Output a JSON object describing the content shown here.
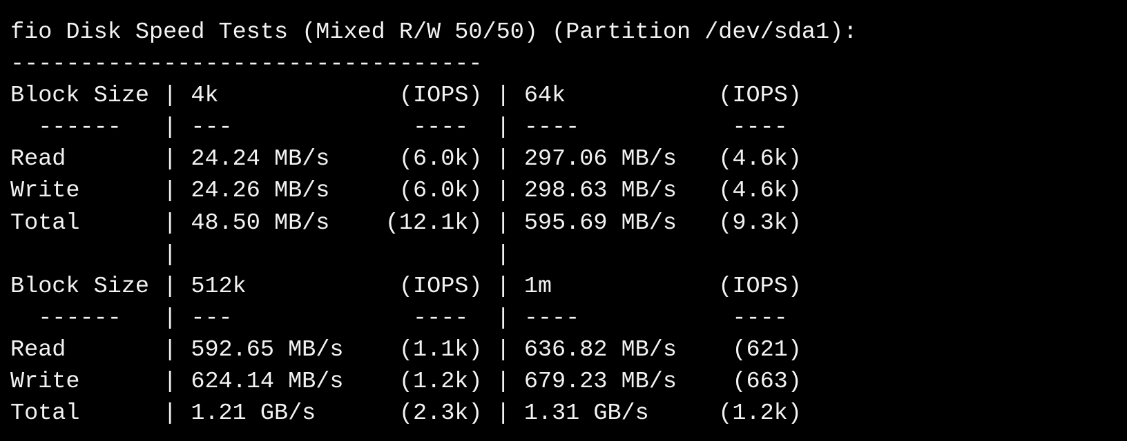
{
  "terminal": {
    "lines": [
      "fio Disk Speed Tests (Mixed R/W 50/50) (Partition /dev/sda1):",
      "----------------------------------",
      "Block Size | 4k             (IOPS) | 64k           (IOPS)",
      "  ------   | ---             ----  | ----           ----",
      "Read       | 24.24 MB/s     (6.0k) | 297.06 MB/s   (4.6k)",
      "Write      | 24.26 MB/s     (6.0k) | 298.63 MB/s   (4.6k)",
      "Total      | 48.50 MB/s    (12.1k) | 595.69 MB/s   (9.3k)",
      "           |                       |",
      "Block Size | 512k           (IOPS) | 1m            (IOPS)",
      "  ------   | ---             ----  | ----           ----",
      "Read       | 592.65 MB/s    (1.1k) | 636.82 MB/s    (621)",
      "Write      | 624.14 MB/s    (1.2k) | 679.23 MB/s    (663)",
      "Total      | 1.21 GB/s      (2.3k) | 1.31 GB/s     (1.2k)"
    ]
  }
}
